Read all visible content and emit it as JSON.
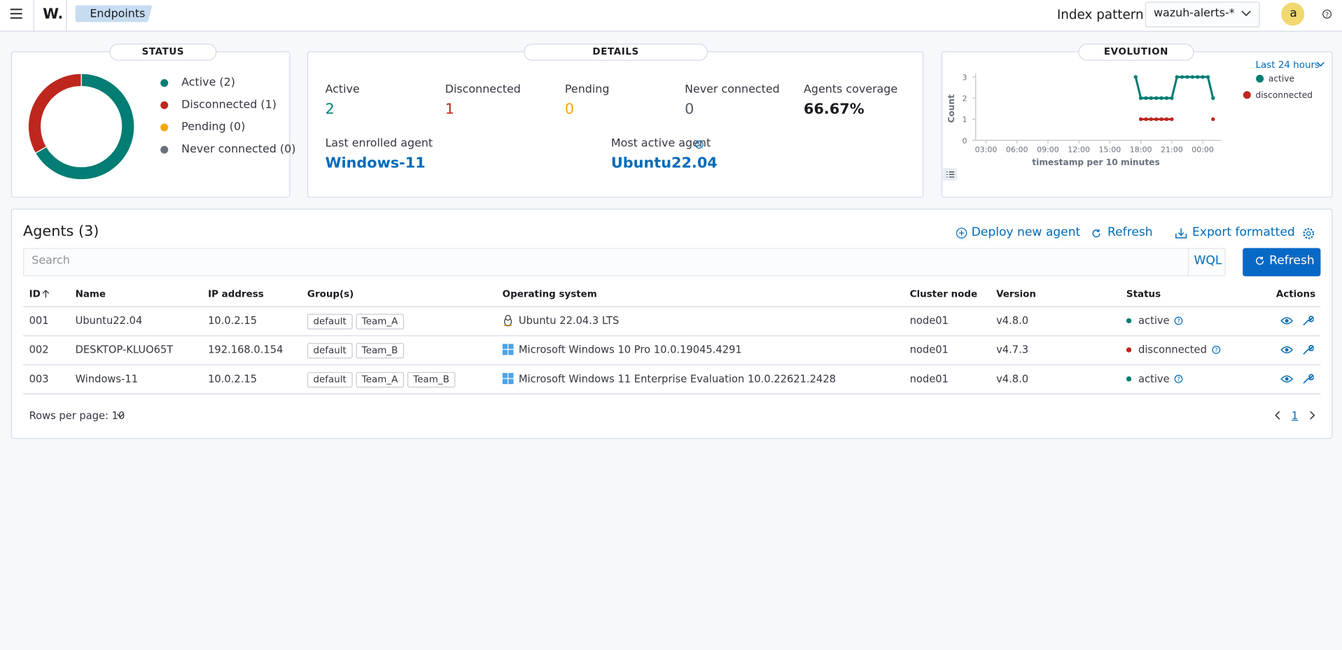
{
  "header": {
    "app_logo": "W.",
    "breadcrumb": "Endpoints",
    "index_pattern_label": "Index pattern",
    "index_pattern": "wazuh-alerts-*",
    "user_avatar": "a"
  },
  "status": {
    "title": "STATUS"
  },
  "details": {
    "title": "DETAILS",
    "stats": [
      {
        "label": "Active",
        "value": 2,
        "color": "#017d73"
      },
      {
        "label": "Disconnected",
        "value": 1,
        "color": "#bd271e"
      },
      {
        "label": "Pending",
        "value": 0,
        "color": "#f5a700"
      },
      {
        "label": "Never connected",
        "value": 0,
        "color": "#535966"
      },
      {
        "label": "Agents coverage",
        "value": "66.67%",
        "color": "#1a1c21"
      }
    ],
    "last_enrolled_label": "Last enrolled agent",
    "last_enrolled": "Windows-11",
    "most_active_label": "Most active agent",
    "most_active": "Ubuntu22.04"
  },
  "evolution": {
    "title": "EVOLUTION",
    "time_range": "Last 24 hours"
  },
  "chart_data": [
    {
      "type": "pie",
      "donut": true,
      "categories": [
        "Active (2)",
        "Disconnected (1)",
        "Pending (0)",
        "Never connected (0)"
      ],
      "values": [
        2,
        1,
        0,
        0
      ],
      "colors": [
        "#017d73",
        "#bd271e",
        "#f5a700",
        "#6a717d"
      ]
    },
    {
      "type": "line",
      "x": [
        17.5,
        18,
        18.5,
        19,
        19.5,
        20,
        20.5,
        21,
        21.5,
        22,
        22.5,
        23,
        23.5,
        24,
        24.5,
        25
      ],
      "series": [
        {
          "name": "active",
          "color": "#017d73",
          "values": [
            3,
            2,
            2,
            2,
            2,
            2,
            2,
            2,
            3,
            3,
            3,
            3,
            3,
            3,
            3,
            2
          ]
        },
        {
          "name": "disconnected",
          "color": "#bd271e",
          "values": [
            null,
            1,
            1,
            1,
            1,
            1,
            1,
            1,
            null,
            null,
            null,
            null,
            null,
            null,
            null,
            1
          ]
        }
      ],
      "xlim": [
        2,
        25.8
      ],
      "xticks": [
        {
          "value": 3,
          "label": "03:00"
        },
        {
          "value": 6,
          "label": "06:00"
        },
        {
          "value": 9,
          "label": "09:00"
        },
        {
          "value": 12,
          "label": "12:00"
        },
        {
          "value": 15,
          "label": "15:00"
        },
        {
          "value": 18,
          "label": "18:00"
        },
        {
          "value": 21,
          "label": "21:00"
        },
        {
          "value": 24,
          "label": "00:00"
        }
      ],
      "ylim": [
        0,
        3
      ],
      "yticks": [
        0,
        1,
        2,
        3
      ],
      "xlabel": "timestamp per 10 minutes",
      "ylabel": "Count"
    }
  ],
  "table": {
    "title": "Agents (3)",
    "actions": [
      "Deploy new agent",
      "Refresh",
      "Export formatted"
    ],
    "search_placeholder": "Search",
    "query_language": "WQL",
    "refresh_button": "Refresh",
    "columns": [
      "ID",
      "Name",
      "IP address",
      "Group(s)",
      "Operating system",
      "Cluster node",
      "Version",
      "Status",
      "Actions"
    ],
    "rows": [
      {
        "id": "001",
        "name": "Ubuntu22.04",
        "ip": "10.0.2.15",
        "groups": [
          "default",
          "Team_A"
        ],
        "os": "Ubuntu 22.04.3 LTS",
        "os_icon": "linux",
        "node": "node01",
        "version": "v4.8.0",
        "status": "active",
        "status_color": "#017d73"
      },
      {
        "id": "002",
        "name": "DESKTOP-KLUO65T",
        "ip": "192.168.0.154",
        "groups": [
          "default",
          "Team_B"
        ],
        "os": "Microsoft Windows 10 Pro 10.0.19045.4291",
        "os_icon": "windows",
        "node": "node01",
        "version": "v4.7.3",
        "status": "disconnected",
        "status_color": "#bd271e"
      },
      {
        "id": "003",
        "name": "Windows-11",
        "ip": "10.0.2.15",
        "groups": [
          "default",
          "Team_A",
          "Team_B"
        ],
        "os": "Microsoft Windows 11 Enterprise Evaluation 10.0.22621.2428",
        "os_icon": "windows",
        "node": "node01",
        "version": "v4.8.0",
        "status": "active",
        "status_color": "#017d73"
      }
    ],
    "rows_per_page": "Rows per page: 10",
    "page": "1"
  }
}
